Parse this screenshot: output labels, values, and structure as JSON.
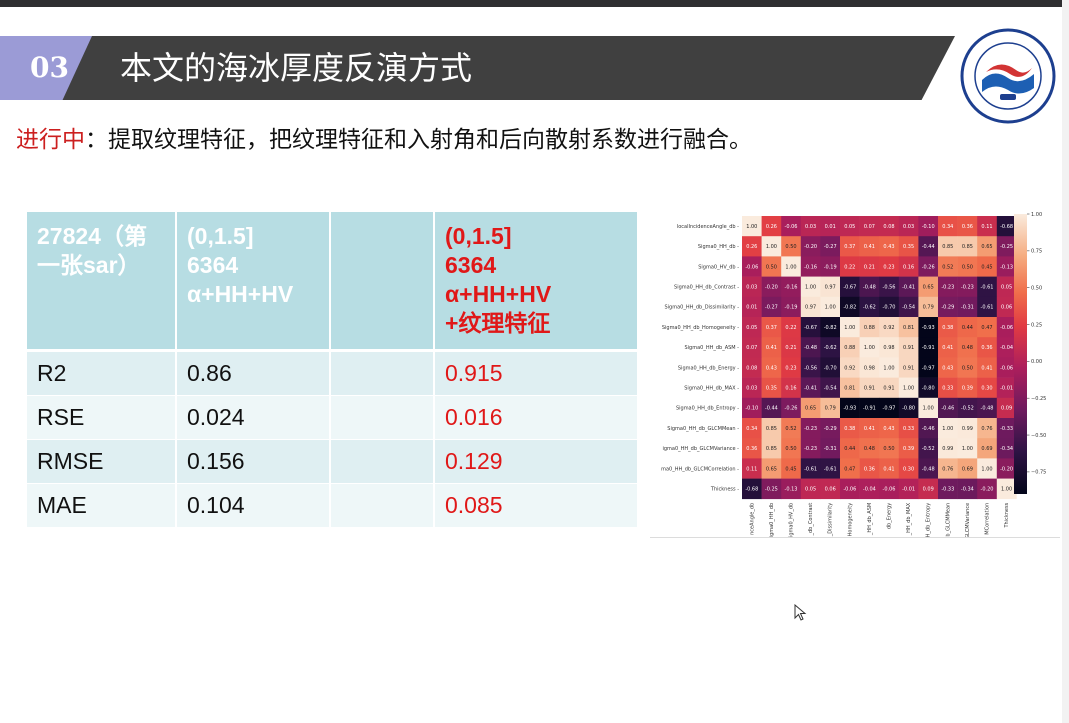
{
  "slide": {
    "number": "03",
    "title": "本文的海冰厚度反演方式",
    "subtitle_prefix": "进行中",
    "subtitle_rest": "：提取纹理特征，把纹理特征和入射角和后向散射系数进行融合。"
  },
  "table": {
    "header": {
      "col1": [
        "27824（第",
        "一张sar）"
      ],
      "col2": [
        "(0,1.5]",
        "6364",
        "α+HH+HV"
      ],
      "col3": [],
      "col4": [
        "(0,1.5]",
        "6364",
        "α+HH+HV",
        "+纹理特征"
      ]
    },
    "rows": [
      {
        "metric": "R2",
        "base": "0.86",
        "texture": "0.915"
      },
      {
        "metric": "RSE",
        "base": "0.024",
        "texture": "0.016"
      },
      {
        "metric": "RMSE",
        "base": "0.156",
        "texture": "0.129"
      },
      {
        "metric": "MAE",
        "base": "0.104",
        "texture": "0.085"
      }
    ]
  },
  "chart_data": {
    "type": "heatmap",
    "title": "",
    "row_labels": [
      "localIncidenceAngle_db",
      "Sigma0_HH_db",
      "Sigma0_HV_db",
      "Sigma0_HH_db_Contrast",
      "Sigma0_HH_db_Dissimilarity",
      "Sigma0_HH_db_Homogeneity",
      "Sigma0_HH_db_ASM",
      "Sigma0_HH_db_Energy",
      "Sigma0_HH_db_MAX",
      "Sigma0_HH_db_Entropy",
      "Sigma0_HH_db_GLCMMean",
      "igma0_HH_db_GLCMVariance",
      "ma0_HH_db_GLCMCorrelation",
      "Thickness"
    ],
    "col_labels": [
      "nceAngle_db",
      "igma0_HH_db",
      "igma0_HV_db",
      "_db_Contrast",
      "_Dissimilarity",
      "Homogeneity",
      "_HH_db_ASM",
      "db_Energy",
      "_HH_db_MAX",
      "H_db_Entropy",
      "b_GLCMMean",
      "GLCMVariance",
      "MCorrelation",
      "Thickness"
    ],
    "values": [
      [
        1.0,
        0.26,
        -0.06,
        0.03,
        0.01,
        0.05,
        0.07,
        0.08,
        0.03,
        -0.1,
        0.34,
        0.36,
        0.11,
        -0.68
      ],
      [
        0.26,
        1.0,
        0.5,
        -0.2,
        -0.27,
        0.37,
        0.41,
        0.43,
        0.35,
        -0.44,
        0.85,
        0.85,
        0.65,
        -0.25
      ],
      [
        -0.06,
        0.5,
        1.0,
        -0.16,
        -0.19,
        0.22,
        0.21,
        0.23,
        0.16,
        -0.26,
        0.52,
        0.5,
        0.45,
        -0.13
      ],
      [
        0.03,
        -0.2,
        -0.16,
        1.0,
        0.97,
        -0.67,
        -0.48,
        -0.56,
        -0.41,
        0.65,
        -0.23,
        -0.23,
        -0.61,
        0.05
      ],
      [
        0.01,
        -0.27,
        -0.19,
        0.97,
        1.0,
        -0.82,
        -0.62,
        -0.7,
        -0.54,
        0.79,
        -0.29,
        -0.31,
        -0.61,
        0.06
      ],
      [
        0.05,
        0.37,
        0.22,
        -0.67,
        -0.82,
        1.0,
        0.88,
        0.92,
        0.81,
        -0.93,
        0.38,
        0.44,
        0.47,
        -0.06
      ],
      [
        0.07,
        0.41,
        0.21,
        -0.48,
        -0.62,
        0.88,
        1.0,
        0.98,
        0.91,
        -0.91,
        0.41,
        0.48,
        0.36,
        -0.04
      ],
      [
        0.08,
        0.43,
        0.23,
        -0.56,
        -0.7,
        0.92,
        0.98,
        1.0,
        0.91,
        -0.97,
        0.43,
        0.5,
        0.41,
        -0.06
      ],
      [
        0.03,
        0.35,
        0.16,
        -0.41,
        -0.54,
        0.81,
        0.91,
        0.91,
        1.0,
        -0.8,
        0.33,
        0.39,
        0.3,
        -0.01
      ],
      [
        -0.1,
        -0.44,
        -0.26,
        0.65,
        0.79,
        -0.93,
        -0.91,
        -0.97,
        -0.8,
        1.0,
        -0.46,
        -0.52,
        -0.48,
        0.09
      ],
      [
        0.34,
        0.85,
        0.52,
        -0.23,
        -0.29,
        0.38,
        0.41,
        0.43,
        0.33,
        -0.46,
        1.0,
        0.99,
        0.76,
        -0.33
      ],
      [
        0.36,
        0.85,
        0.5,
        -0.23,
        -0.31,
        0.44,
        0.48,
        0.5,
        0.39,
        -0.52,
        0.99,
        1.0,
        0.69,
        -0.34
      ],
      [
        0.11,
        0.65,
        0.45,
        -0.61,
        -0.61,
        0.47,
        0.36,
        0.41,
        0.3,
        -0.48,
        0.76,
        0.69,
        1.0,
        -0.2
      ],
      [
        -0.68,
        -0.25,
        -0.13,
        0.05,
        0.06,
        -0.06,
        -0.04,
        -0.06,
        -0.01,
        0.09,
        -0.33,
        -0.34,
        -0.2,
        1.0
      ]
    ],
    "colorbar_ticks": [
      "1.00",
      "0.75",
      "0.50",
      "0.25",
      "0.00",
      "−0.25",
      "−0.50",
      "−0.75"
    ],
    "colorbar_range": [
      -0.9,
      1.0
    ]
  },
  "colors": {
    "title_band": "#404040",
    "number_tab": "#9b9bd6",
    "header_cell": "#b7dde3",
    "highlight_red": "#e01818"
  }
}
